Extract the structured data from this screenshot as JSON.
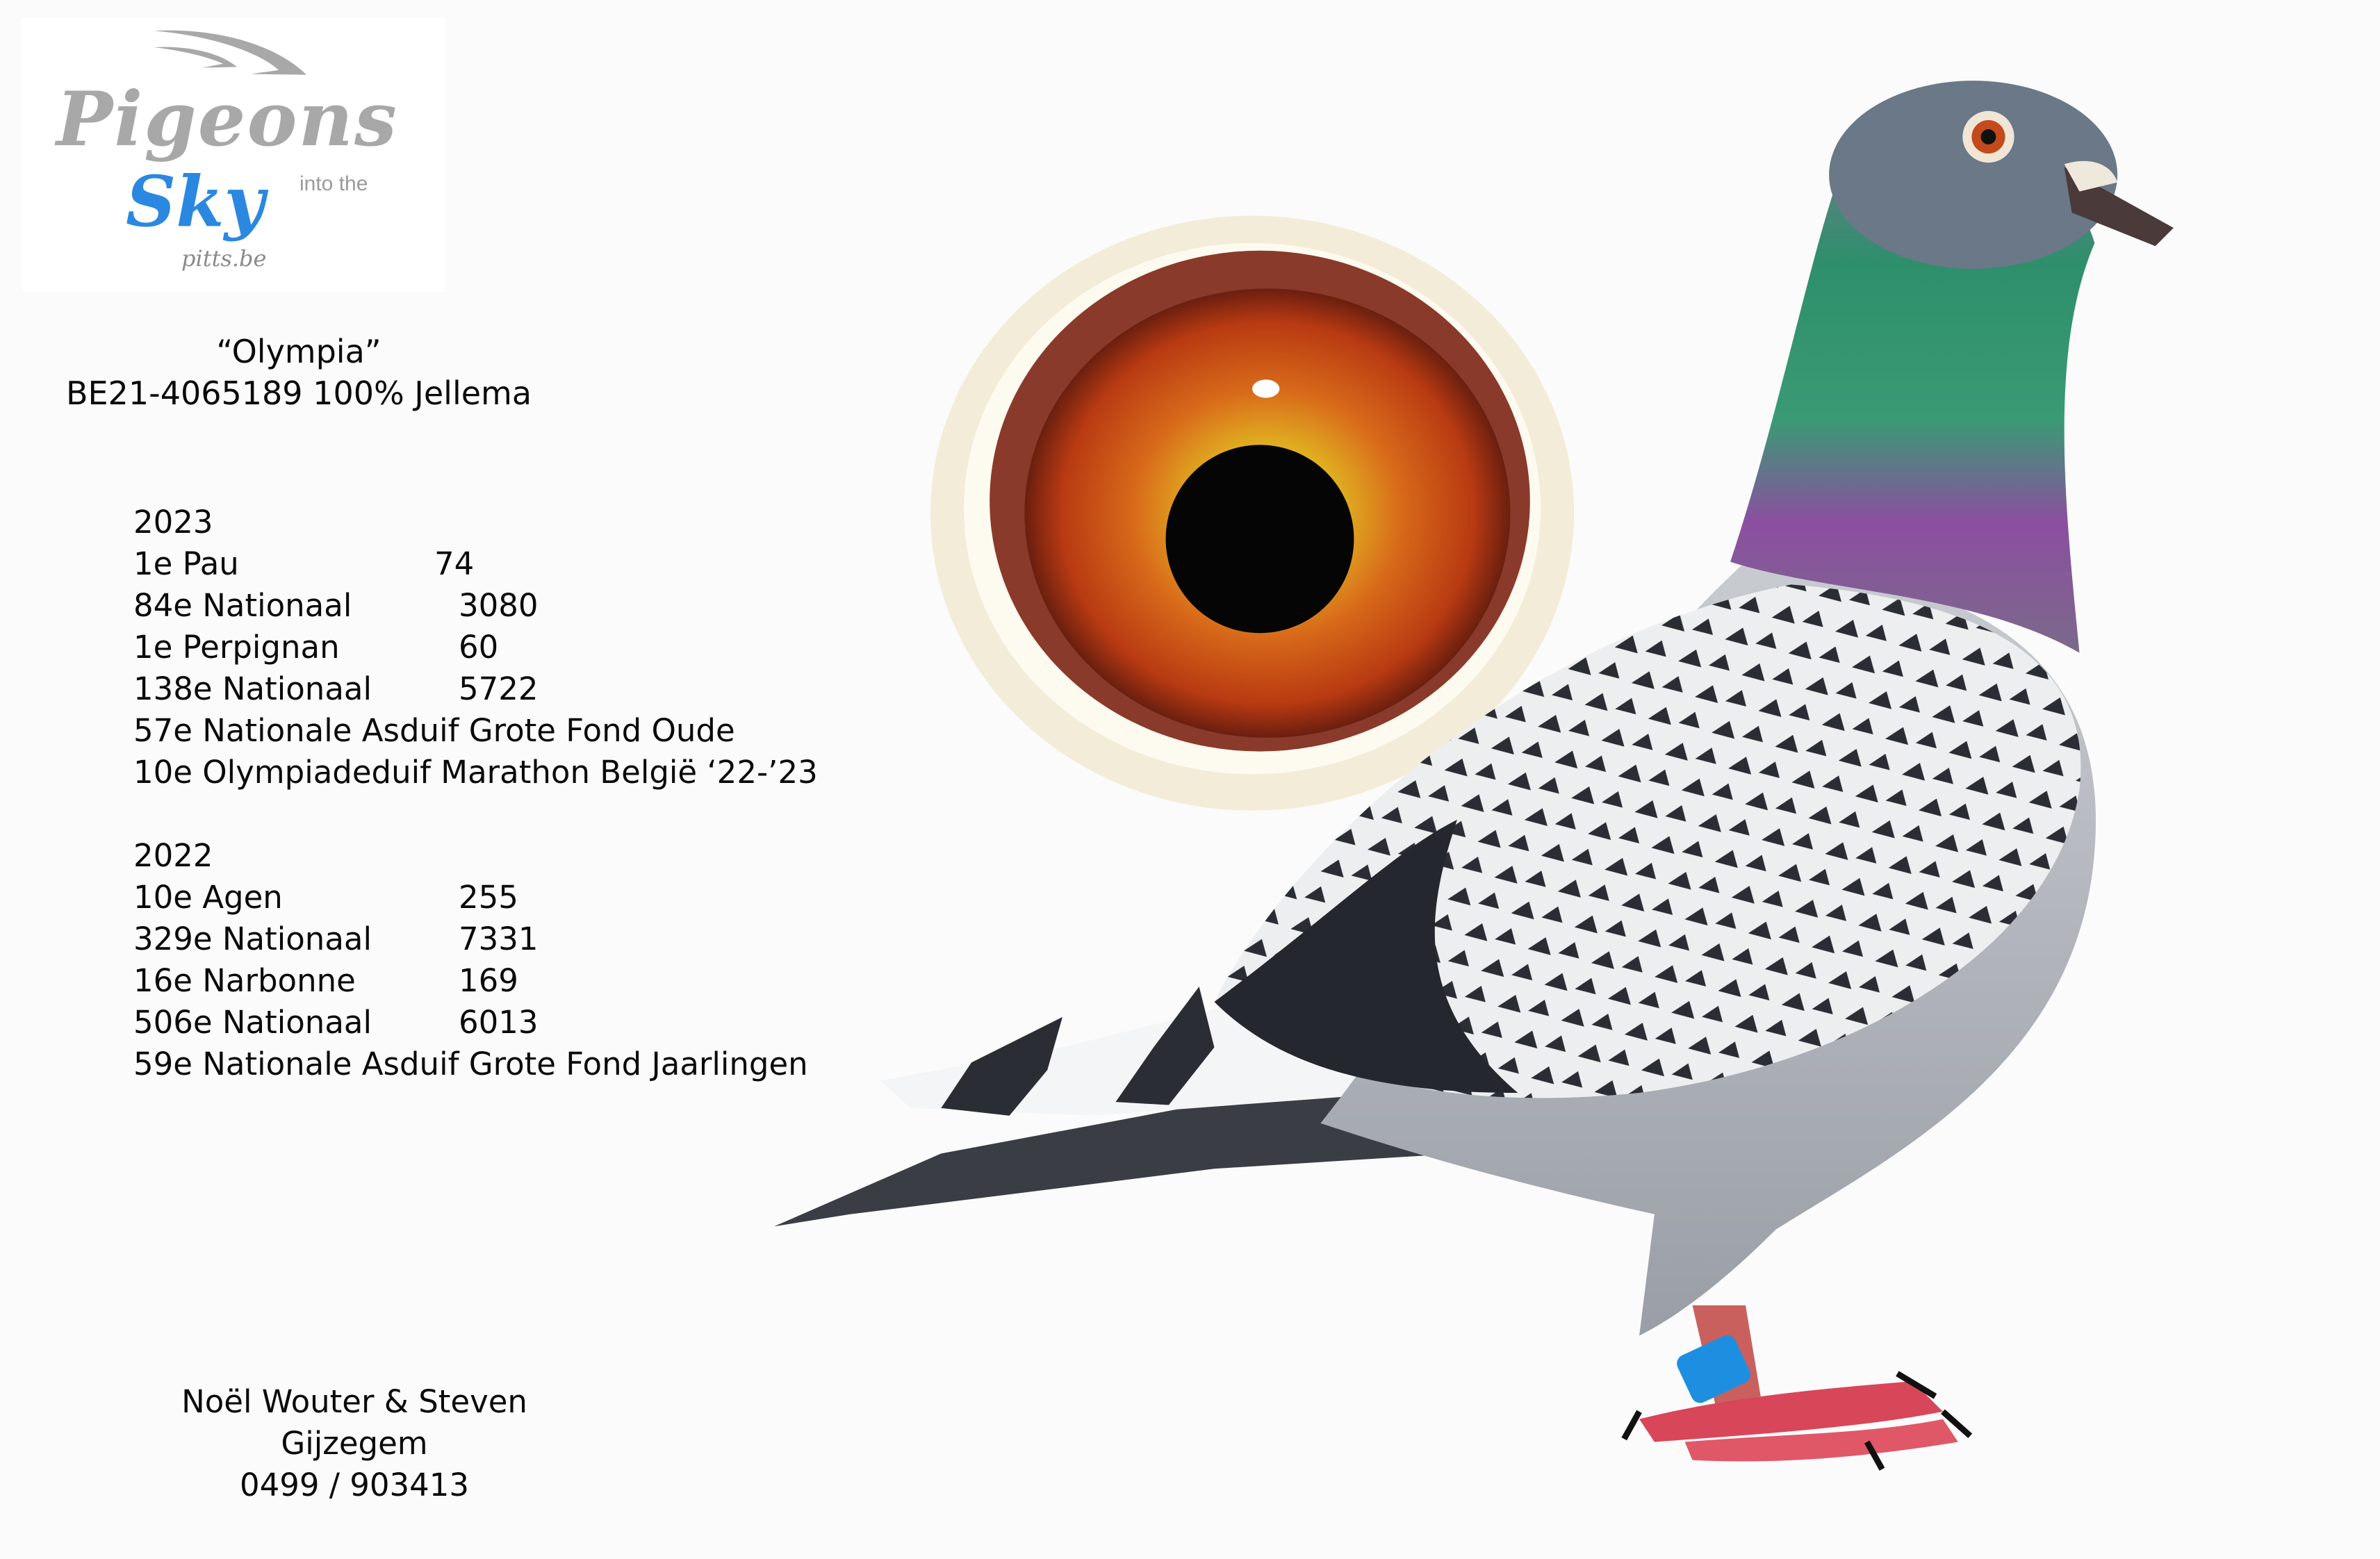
{
  "logo": {
    "line1": "Pigeons",
    "line2": "into the",
    "line3": "Sky",
    "url": "pitts.be"
  },
  "pigeon": {
    "name": "“Olympia”",
    "ring": "BE21-4065189 100% Jellema"
  },
  "results": [
    {
      "year": "2023",
      "items": [
        {
          "label": "1e Pau",
          "count": "74"
        },
        {
          "label": "84e Nationaal",
          "count": "3080"
        },
        {
          "label": "1e Perpignan",
          "count": "60"
        },
        {
          "label": "138e Nationaal",
          "count": "5722"
        },
        {
          "label": "57e Nationale Asduif Grote Fond Oude",
          "count": ""
        },
        {
          "label": "10e Olympiadeduif Marathon België ‘22-’23",
          "count": ""
        }
      ]
    },
    {
      "year": "2022",
      "items": [
        {
          "label": "10e Agen",
          "count": "255"
        },
        {
          "label": "329e Nationaal",
          "count": "7331"
        },
        {
          "label": "16e Narbonne",
          "count": "169"
        },
        {
          "label": "506e Nationaal",
          "count": "6013"
        },
        {
          "label": "59e Nationale Asduif Grote Fond Jaarlingen",
          "count": ""
        }
      ]
    }
  ],
  "owner": {
    "names": "Noël Wouter & Steven",
    "city": "Gijzegem",
    "phone": "0499 / 903413"
  },
  "colors": {
    "background": "#fbfbfb",
    "logo_gray": "#a8a8a8",
    "logo_blue": "#2a88e0",
    "eye_iris": "#d2531a",
    "neck_green": "#2e8f6c",
    "neck_purple": "#8b4fa0",
    "band_blue": "#1e8fe0"
  }
}
